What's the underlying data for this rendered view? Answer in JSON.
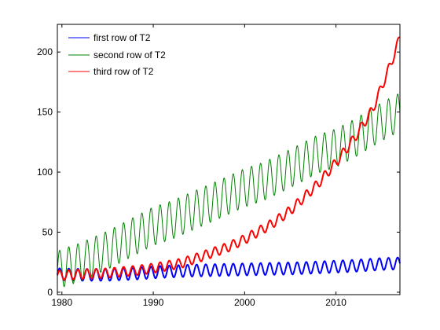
{
  "chart_data": {
    "type": "line",
    "title": "",
    "xlabel": "",
    "ylabel": "",
    "xlim": [
      1979.5,
      2017
    ],
    "ylim": [
      -2,
      223
    ],
    "xticks": [
      1980,
      1990,
      2000,
      2010
    ],
    "yticks": [
      0,
      50,
      100,
      150,
      200
    ],
    "grid": false,
    "legend": "top-left",
    "series": [
      {
        "name": "first row of T2",
        "color": "#0000ff",
        "x": [
          1979.5,
          1982,
          1985,
          1988,
          1991,
          1994,
          1997,
          2000,
          2003,
          2006,
          2009,
          2012,
          2015,
          2017
        ],
        "values": [
          15.0,
          14.5,
          14.5,
          15.5,
          17.0,
          18.0,
          18.5,
          19.0,
          19.5,
          20.0,
          21.0,
          22.0,
          23.5,
          24.0
        ],
        "seasonal_amplitude": 5
      },
      {
        "name": "second row of T2",
        "color": "#008000",
        "x": [
          1979.5,
          1980,
          1982,
          1985,
          1988,
          1990,
          1992,
          1995,
          1998,
          2000,
          2002,
          2005,
          2008,
          2010,
          2012,
          2015,
          2017
        ],
        "values": [
          18.0,
          20.0,
          25.0,
          35.0,
          47.0,
          55.0,
          60.0,
          70.0,
          80.0,
          87.0,
          92.0,
          103.0,
          115.0,
          120.0,
          128.0,
          142.0,
          150.0
        ],
        "seasonal_amplitude": 16
      },
      {
        "name": "third row of T2",
        "color": "#ff0000",
        "x": [
          1979.5,
          1982,
          1985,
          1988,
          1990,
          1993,
          1995,
          1998,
          2000,
          2003,
          2005,
          2008,
          2010,
          2012,
          2014,
          2016,
          2017
        ],
        "values": [
          14.0,
          15.0,
          16.0,
          18.0,
          20.0,
          24.0,
          29.0,
          37.0,
          44.0,
          57.0,
          68.0,
          90.0,
          108.0,
          128.0,
          152.0,
          190.0,
          212.0
        ],
        "seasonal_amplitude": 4
      }
    ]
  }
}
